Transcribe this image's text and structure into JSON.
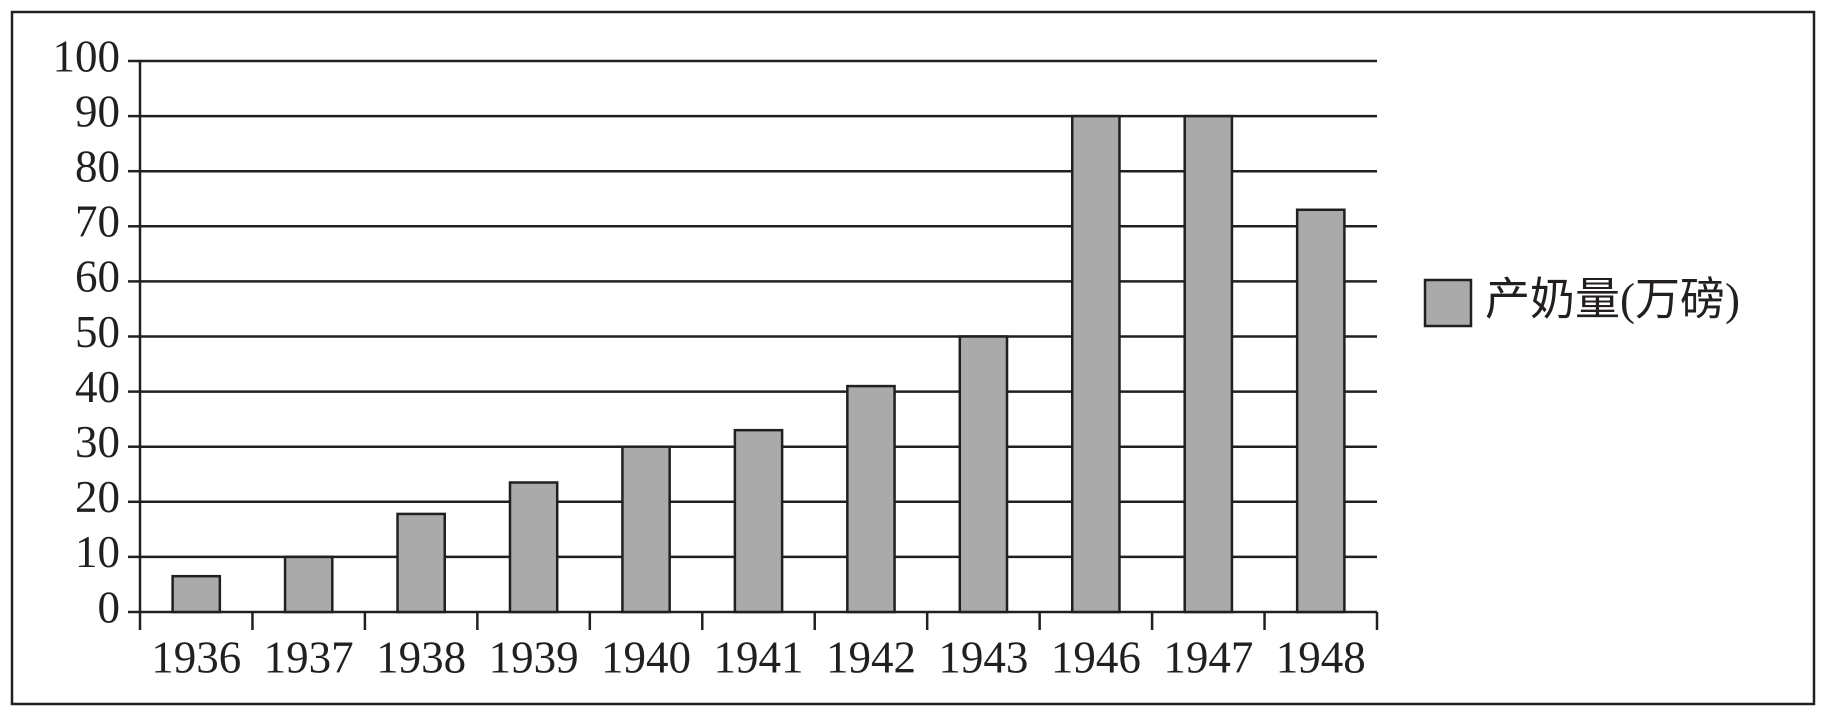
{
  "chart_data": {
    "type": "bar",
    "categories": [
      "1936",
      "1937",
      "1938",
      "1939",
      "1940",
      "1941",
      "1942",
      "1943",
      "1946",
      "1947",
      "1948"
    ],
    "series": [
      {
        "name": "产奶量(万磅)",
        "color": "#aaaaaa",
        "values": [
          6.5,
          10,
          17.8,
          23.5,
          30,
          33,
          41,
          50,
          90,
          90,
          73
        ]
      }
    ],
    "ylim": [
      0,
      100
    ],
    "yticks": [
      0,
      10,
      20,
      30,
      40,
      50,
      60,
      70,
      80,
      90,
      100
    ],
    "grid": true,
    "legend": "right"
  }
}
